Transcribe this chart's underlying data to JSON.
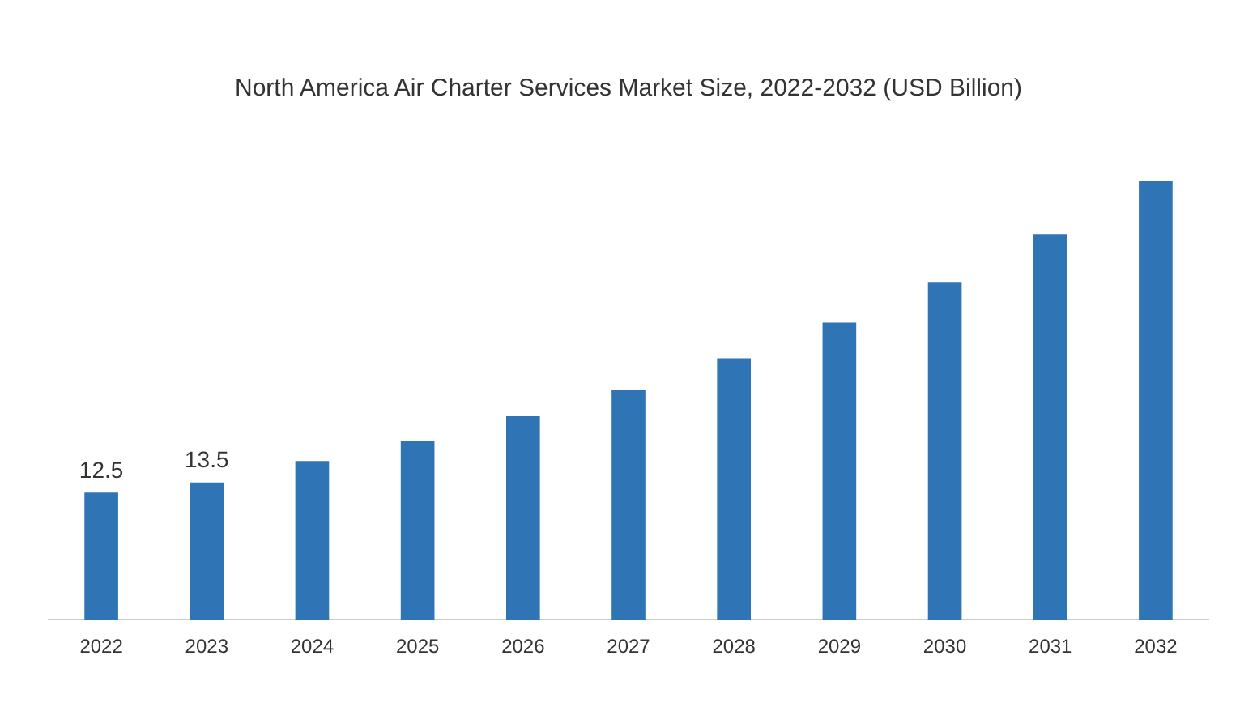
{
  "chart_data": {
    "type": "bar",
    "title": "North America Air Charter Services Market Size, 2022-2032 (USD Billion)",
    "categories": [
      "2022",
      "2023",
      "2024",
      "2025",
      "2026",
      "2027",
      "2028",
      "2029",
      "2030",
      "2031",
      "2032"
    ],
    "values": [
      12.5,
      13.5,
      15.6,
      17.6,
      20.0,
      22.6,
      25.7,
      29.2,
      33.2,
      37.9,
      43.1
    ],
    "value_labels": [
      "12.5",
      "13.5",
      null,
      null,
      null,
      null,
      null,
      null,
      null,
      null,
      null
    ],
    "color": "#2f75b5",
    "grid": false,
    "legend": false,
    "tick_labels": "x"
  }
}
